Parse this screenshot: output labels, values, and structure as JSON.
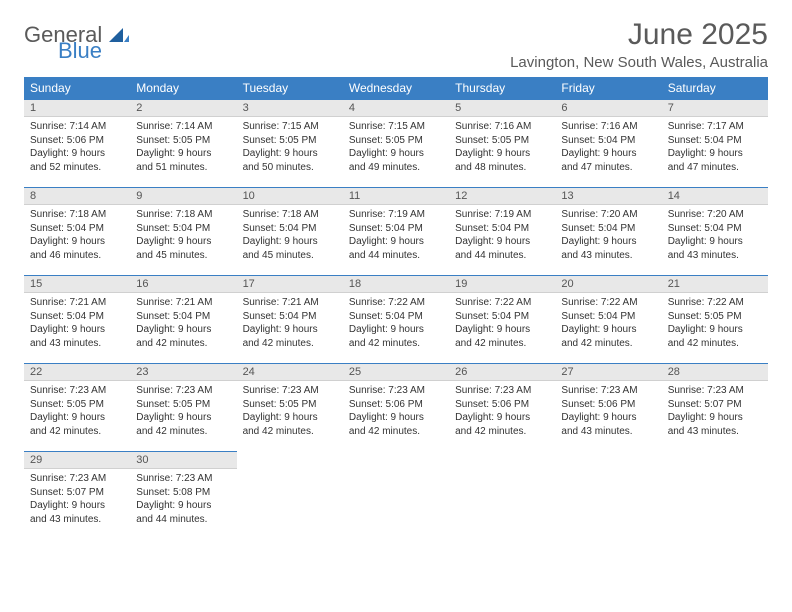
{
  "logo": {
    "word1": "General",
    "word2": "Blue"
  },
  "title": "June 2025",
  "location": "Lavington, New South Wales, Australia",
  "header_bg": "#3a7fc4",
  "days_of_week": [
    "Sunday",
    "Monday",
    "Tuesday",
    "Wednesday",
    "Thursday",
    "Friday",
    "Saturday"
  ],
  "weeks": [
    [
      {
        "n": "1",
        "sr": "Sunrise: 7:14 AM",
        "ss": "Sunset: 5:06 PM",
        "dl1": "Daylight: 9 hours",
        "dl2": "and 52 minutes."
      },
      {
        "n": "2",
        "sr": "Sunrise: 7:14 AM",
        "ss": "Sunset: 5:05 PM",
        "dl1": "Daylight: 9 hours",
        "dl2": "and 51 minutes."
      },
      {
        "n": "3",
        "sr": "Sunrise: 7:15 AM",
        "ss": "Sunset: 5:05 PM",
        "dl1": "Daylight: 9 hours",
        "dl2": "and 50 minutes."
      },
      {
        "n": "4",
        "sr": "Sunrise: 7:15 AM",
        "ss": "Sunset: 5:05 PM",
        "dl1": "Daylight: 9 hours",
        "dl2": "and 49 minutes."
      },
      {
        "n": "5",
        "sr": "Sunrise: 7:16 AM",
        "ss": "Sunset: 5:05 PM",
        "dl1": "Daylight: 9 hours",
        "dl2": "and 48 minutes."
      },
      {
        "n": "6",
        "sr": "Sunrise: 7:16 AM",
        "ss": "Sunset: 5:04 PM",
        "dl1": "Daylight: 9 hours",
        "dl2": "and 47 minutes."
      },
      {
        "n": "7",
        "sr": "Sunrise: 7:17 AM",
        "ss": "Sunset: 5:04 PM",
        "dl1": "Daylight: 9 hours",
        "dl2": "and 47 minutes."
      }
    ],
    [
      {
        "n": "8",
        "sr": "Sunrise: 7:18 AM",
        "ss": "Sunset: 5:04 PM",
        "dl1": "Daylight: 9 hours",
        "dl2": "and 46 minutes."
      },
      {
        "n": "9",
        "sr": "Sunrise: 7:18 AM",
        "ss": "Sunset: 5:04 PM",
        "dl1": "Daylight: 9 hours",
        "dl2": "and 45 minutes."
      },
      {
        "n": "10",
        "sr": "Sunrise: 7:18 AM",
        "ss": "Sunset: 5:04 PM",
        "dl1": "Daylight: 9 hours",
        "dl2": "and 45 minutes."
      },
      {
        "n": "11",
        "sr": "Sunrise: 7:19 AM",
        "ss": "Sunset: 5:04 PM",
        "dl1": "Daylight: 9 hours",
        "dl2": "and 44 minutes."
      },
      {
        "n": "12",
        "sr": "Sunrise: 7:19 AM",
        "ss": "Sunset: 5:04 PM",
        "dl1": "Daylight: 9 hours",
        "dl2": "and 44 minutes."
      },
      {
        "n": "13",
        "sr": "Sunrise: 7:20 AM",
        "ss": "Sunset: 5:04 PM",
        "dl1": "Daylight: 9 hours",
        "dl2": "and 43 minutes."
      },
      {
        "n": "14",
        "sr": "Sunrise: 7:20 AM",
        "ss": "Sunset: 5:04 PM",
        "dl1": "Daylight: 9 hours",
        "dl2": "and 43 minutes."
      }
    ],
    [
      {
        "n": "15",
        "sr": "Sunrise: 7:21 AM",
        "ss": "Sunset: 5:04 PM",
        "dl1": "Daylight: 9 hours",
        "dl2": "and 43 minutes."
      },
      {
        "n": "16",
        "sr": "Sunrise: 7:21 AM",
        "ss": "Sunset: 5:04 PM",
        "dl1": "Daylight: 9 hours",
        "dl2": "and 42 minutes."
      },
      {
        "n": "17",
        "sr": "Sunrise: 7:21 AM",
        "ss": "Sunset: 5:04 PM",
        "dl1": "Daylight: 9 hours",
        "dl2": "and 42 minutes."
      },
      {
        "n": "18",
        "sr": "Sunrise: 7:22 AM",
        "ss": "Sunset: 5:04 PM",
        "dl1": "Daylight: 9 hours",
        "dl2": "and 42 minutes."
      },
      {
        "n": "19",
        "sr": "Sunrise: 7:22 AM",
        "ss": "Sunset: 5:04 PM",
        "dl1": "Daylight: 9 hours",
        "dl2": "and 42 minutes."
      },
      {
        "n": "20",
        "sr": "Sunrise: 7:22 AM",
        "ss": "Sunset: 5:04 PM",
        "dl1": "Daylight: 9 hours",
        "dl2": "and 42 minutes."
      },
      {
        "n": "21",
        "sr": "Sunrise: 7:22 AM",
        "ss": "Sunset: 5:05 PM",
        "dl1": "Daylight: 9 hours",
        "dl2": "and 42 minutes."
      }
    ],
    [
      {
        "n": "22",
        "sr": "Sunrise: 7:23 AM",
        "ss": "Sunset: 5:05 PM",
        "dl1": "Daylight: 9 hours",
        "dl2": "and 42 minutes."
      },
      {
        "n": "23",
        "sr": "Sunrise: 7:23 AM",
        "ss": "Sunset: 5:05 PM",
        "dl1": "Daylight: 9 hours",
        "dl2": "and 42 minutes."
      },
      {
        "n": "24",
        "sr": "Sunrise: 7:23 AM",
        "ss": "Sunset: 5:05 PM",
        "dl1": "Daylight: 9 hours",
        "dl2": "and 42 minutes."
      },
      {
        "n": "25",
        "sr": "Sunrise: 7:23 AM",
        "ss": "Sunset: 5:06 PM",
        "dl1": "Daylight: 9 hours",
        "dl2": "and 42 minutes."
      },
      {
        "n": "26",
        "sr": "Sunrise: 7:23 AM",
        "ss": "Sunset: 5:06 PM",
        "dl1": "Daylight: 9 hours",
        "dl2": "and 42 minutes."
      },
      {
        "n": "27",
        "sr": "Sunrise: 7:23 AM",
        "ss": "Sunset: 5:06 PM",
        "dl1": "Daylight: 9 hours",
        "dl2": "and 43 minutes."
      },
      {
        "n": "28",
        "sr": "Sunrise: 7:23 AM",
        "ss": "Sunset: 5:07 PM",
        "dl1": "Daylight: 9 hours",
        "dl2": "and 43 minutes."
      }
    ],
    [
      {
        "n": "29",
        "sr": "Sunrise: 7:23 AM",
        "ss": "Sunset: 5:07 PM",
        "dl1": "Daylight: 9 hours",
        "dl2": "and 43 minutes."
      },
      {
        "n": "30",
        "sr": "Sunrise: 7:23 AM",
        "ss": "Sunset: 5:08 PM",
        "dl1": "Daylight: 9 hours",
        "dl2": "and 44 minutes."
      },
      null,
      null,
      null,
      null,
      null
    ]
  ]
}
